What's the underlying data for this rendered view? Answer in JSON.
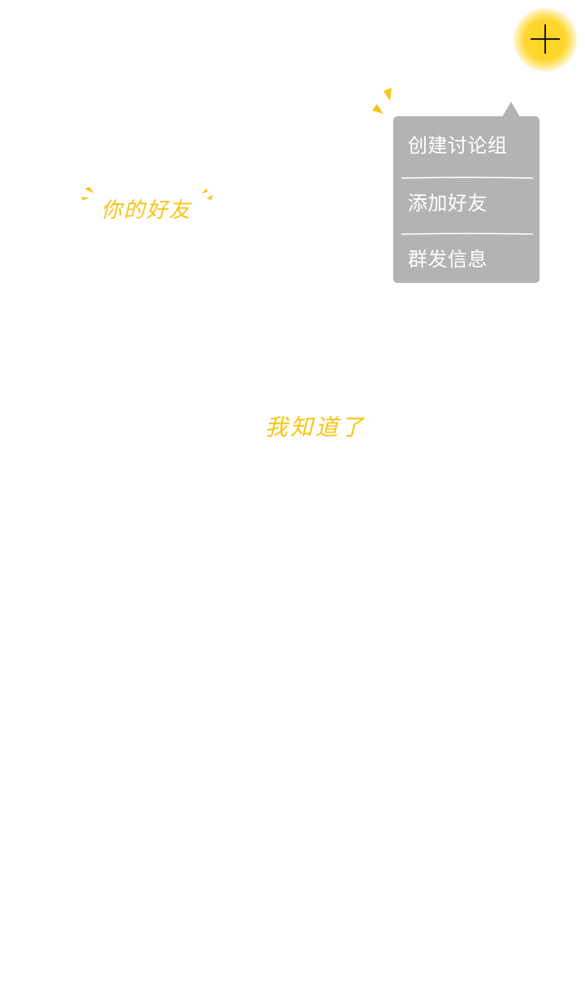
{
  "plus_button": {
    "icon": "plus-icon",
    "glow_color": "#ffd41f"
  },
  "popup_menu": {
    "background": "#b3b3b3",
    "items": [
      {
        "label": "创建讨论组"
      },
      {
        "label": "添加好友"
      },
      {
        "label": "群发信息"
      }
    ]
  },
  "hints": {
    "friends_label": "你的好友",
    "got_it_label": "我知道了",
    "accent_color": "#f5c518"
  }
}
